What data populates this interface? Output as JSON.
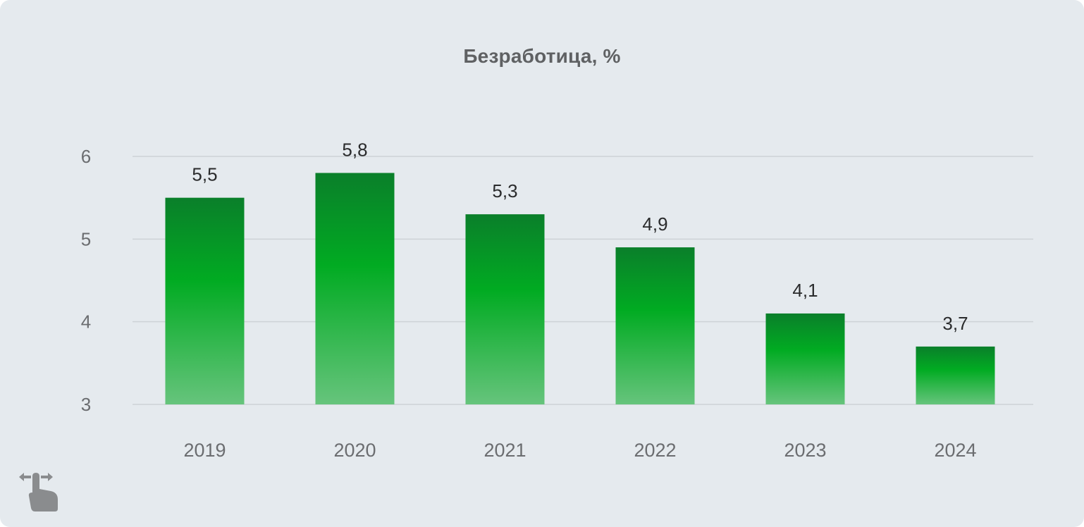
{
  "chart_data": {
    "type": "bar",
    "title": "Безработица, %",
    "categories": [
      "2019",
      "2020",
      "2021",
      "2022",
      "2023",
      "2024"
    ],
    "values": [
      5.5,
      5.8,
      5.3,
      4.9,
      4.1,
      3.7
    ],
    "data_labels": [
      "5,5",
      "5,8",
      "5,3",
      "4,9",
      "4,1",
      "3,7"
    ],
    "y_ticks": [
      3,
      4,
      5,
      6
    ],
    "ylim": [
      3,
      6
    ],
    "xlabel": "",
    "ylabel": "",
    "grid": true,
    "legend": "none",
    "colors": {
      "bar_top": "#0a7f2a",
      "bar_mid": "#01ab22",
      "bar_bottom": "#66c47c",
      "background": "#e5eaee"
    }
  },
  "icons": {
    "swipe": "swipe-gesture-icon"
  }
}
